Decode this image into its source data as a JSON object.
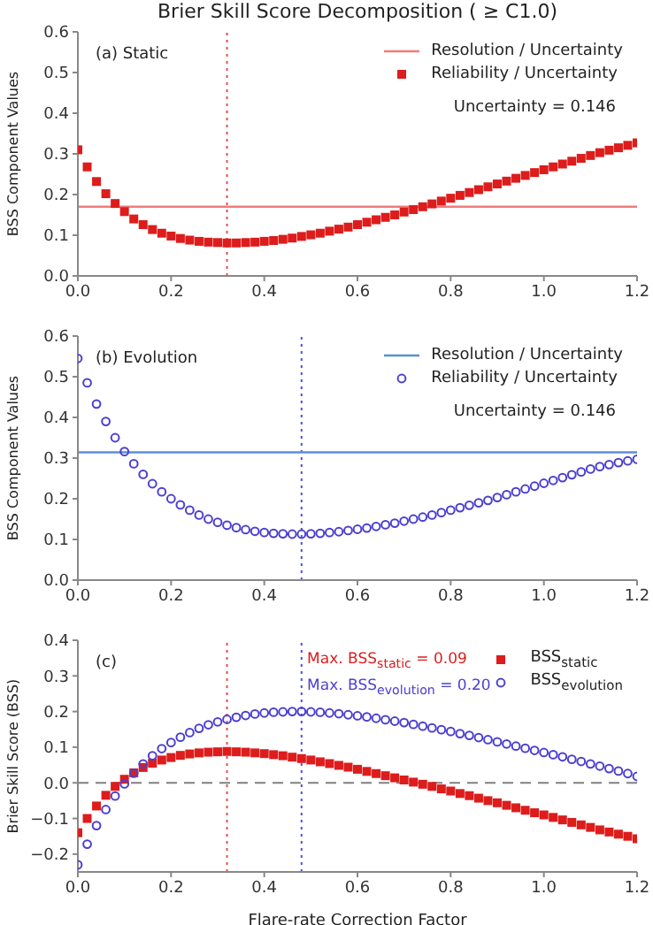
{
  "chart_data": [
    {
      "type": "scatter",
      "title": "Brier Skill Score Decomposition ( ≥ C1.0)",
      "ylabel": "BSS Component Values",
      "legend": "top right",
      "annotations": [
        "(a) Static",
        "Uncertainty = 0.146"
      ],
      "xlim": [
        0,
        1.2
      ],
      "xticks": [
        {
          "value": 0,
          "label": "0.0"
        },
        {
          "value": 0.2,
          "label": "0.2"
        },
        {
          "value": 0.4,
          "label": "0.4"
        },
        {
          "value": 0.6,
          "label": "0.6"
        },
        {
          "value": 0.8,
          "label": "0.8"
        },
        {
          "value": 1,
          "label": "1.0"
        },
        {
          "value": 1.2,
          "label": "1.2"
        }
      ],
      "ylim": [
        0,
        0.6
      ],
      "yticks": [
        {
          "value": 0,
          "label": "0.0"
        },
        {
          "value": 0.1,
          "label": "0.1"
        },
        {
          "value": 0.2,
          "label": "0.2"
        },
        {
          "value": 0.3,
          "label": "0.3"
        },
        {
          "value": 0.4,
          "label": "0.4"
        },
        {
          "value": 0.5,
          "label": "0.5"
        },
        {
          "value": 0.6,
          "label": "0.6"
        }
      ],
      "x": [
        0,
        0.02,
        0.04,
        0.06,
        0.08,
        0.1,
        0.12,
        0.14,
        0.16,
        0.18,
        0.2,
        0.22,
        0.24,
        0.26,
        0.28,
        0.3,
        0.32,
        0.34,
        0.36,
        0.38,
        0.4,
        0.42,
        0.44,
        0.46,
        0.48,
        0.5,
        0.52,
        0.54,
        0.56,
        0.58,
        0.6,
        0.62,
        0.64,
        0.66,
        0.68,
        0.7,
        0.72,
        0.74,
        0.76,
        0.78,
        0.8,
        0.82,
        0.84,
        0.86,
        0.88,
        0.9,
        0.92,
        0.94,
        0.96,
        0.98,
        1,
        1.02,
        1.04,
        1.06,
        1.08,
        1.1,
        1.12,
        1.14,
        1.16,
        1.18,
        1.2
      ],
      "ref_lines": [
        {
          "axis": "x",
          "value": 0.32,
          "color": "#e05050",
          "line_style": "dotted"
        }
      ],
      "series": [
        {
          "name": "Resolution / Uncertainty",
          "type": "line",
          "color": "#f07c7c",
          "values": [
            0.17,
            0.17,
            0.17,
            0.17,
            0.17,
            0.17,
            0.17,
            0.17,
            0.17,
            0.17,
            0.17,
            0.17,
            0.17,
            0.17,
            0.17,
            0.17,
            0.17,
            0.17,
            0.17,
            0.17,
            0.17,
            0.17,
            0.17,
            0.17,
            0.17,
            0.17,
            0.17,
            0.17,
            0.17,
            0.17,
            0.17,
            0.17,
            0.17,
            0.17,
            0.17,
            0.17,
            0.17,
            0.17,
            0.17,
            0.17,
            0.17,
            0.17,
            0.17,
            0.17,
            0.17,
            0.17,
            0.17,
            0.17,
            0.17,
            0.17,
            0.17,
            0.17,
            0.17,
            0.17,
            0.17,
            0.17,
            0.17,
            0.17,
            0.17,
            0.17,
            0.17
          ]
        },
        {
          "name": "Reliability / Uncertainty",
          "color": "#dd1c1c",
          "marker": "square",
          "values": [
            0.31,
            0.268,
            0.232,
            0.202,
            0.178,
            0.158,
            0.14,
            0.126,
            0.114,
            0.105,
            0.098,
            0.092,
            0.088,
            0.085,
            0.083,
            0.082,
            0.081,
            0.081,
            0.082,
            0.083,
            0.085,
            0.087,
            0.09,
            0.093,
            0.097,
            0.101,
            0.105,
            0.11,
            0.115,
            0.12,
            0.126,
            0.132,
            0.138,
            0.144,
            0.15,
            0.157,
            0.163,
            0.17,
            0.177,
            0.184,
            0.191,
            0.198,
            0.205,
            0.212,
            0.219,
            0.226,
            0.233,
            0.24,
            0.247,
            0.254,
            0.261,
            0.268,
            0.275,
            0.282,
            0.289,
            0.296,
            0.303,
            0.309,
            0.315,
            0.321,
            0.327
          ]
        }
      ]
    },
    {
      "type": "scatter",
      "ylabel": "BSS Component Values",
      "legend": "top right",
      "annotations": [
        "(b) Evolution",
        "Uncertainty = 0.146"
      ],
      "xlim": [
        0,
        1.2
      ],
      "xticks": [
        {
          "value": 0,
          "label": "0.0"
        },
        {
          "value": 0.2,
          "label": "0.2"
        },
        {
          "value": 0.4,
          "label": "0.4"
        },
        {
          "value": 0.6,
          "label": "0.6"
        },
        {
          "value": 0.8,
          "label": "0.8"
        },
        {
          "value": 1,
          "label": "1.0"
        },
        {
          "value": 1.2,
          "label": "1.2"
        }
      ],
      "ylim": [
        0,
        0.6
      ],
      "yticks": [
        {
          "value": 0,
          "label": "0.0"
        },
        {
          "value": 0.1,
          "label": "0.1"
        },
        {
          "value": 0.2,
          "label": "0.2"
        },
        {
          "value": 0.3,
          "label": "0.3"
        },
        {
          "value": 0.4,
          "label": "0.4"
        },
        {
          "value": 0.5,
          "label": "0.5"
        },
        {
          "value": 0.6,
          "label": "0.6"
        }
      ],
      "x": [
        0,
        0.02,
        0.04,
        0.06,
        0.08,
        0.1,
        0.12,
        0.14,
        0.16,
        0.18,
        0.2,
        0.22,
        0.24,
        0.26,
        0.28,
        0.3,
        0.32,
        0.34,
        0.36,
        0.38,
        0.4,
        0.42,
        0.44,
        0.46,
        0.48,
        0.5,
        0.52,
        0.54,
        0.56,
        0.58,
        0.6,
        0.62,
        0.64,
        0.66,
        0.68,
        0.7,
        0.72,
        0.74,
        0.76,
        0.78,
        0.8,
        0.82,
        0.84,
        0.86,
        0.88,
        0.9,
        0.92,
        0.94,
        0.96,
        0.98,
        1,
        1.02,
        1.04,
        1.06,
        1.08,
        1.1,
        1.12,
        1.14,
        1.16,
        1.18,
        1.2
      ],
      "ref_lines": [
        {
          "axis": "x",
          "value": 0.48,
          "color": "#5050e0",
          "line_style": "dotted"
        }
      ],
      "series": [
        {
          "name": "Resolution / Uncertainty",
          "type": "line",
          "color": "#5b8fd6",
          "values": [
            0.314,
            0.314,
            0.314,
            0.314,
            0.314,
            0.314,
            0.314,
            0.314,
            0.314,
            0.314,
            0.314,
            0.314,
            0.314,
            0.314,
            0.314,
            0.314,
            0.314,
            0.314,
            0.314,
            0.314,
            0.314,
            0.314,
            0.314,
            0.314,
            0.314,
            0.314,
            0.314,
            0.314,
            0.314,
            0.314,
            0.314,
            0.314,
            0.314,
            0.314,
            0.314,
            0.314,
            0.314,
            0.314,
            0.314,
            0.314,
            0.314,
            0.314,
            0.314,
            0.314,
            0.314,
            0.314,
            0.314,
            0.314,
            0.314,
            0.314,
            0.314,
            0.314,
            0.314,
            0.314,
            0.314,
            0.314,
            0.314,
            0.314,
            0.314,
            0.314,
            0.314
          ]
        },
        {
          "name": "Reliability / Uncertainty",
          "color": "#4b3fd0",
          "marker": "circle",
          "values": [
            0.545,
            0.485,
            0.433,
            0.39,
            0.35,
            0.316,
            0.286,
            0.26,
            0.237,
            0.217,
            0.2,
            0.185,
            0.172,
            0.16,
            0.15,
            0.142,
            0.135,
            0.129,
            0.124,
            0.12,
            0.117,
            0.115,
            0.114,
            0.113,
            0.113,
            0.114,
            0.115,
            0.117,
            0.119,
            0.122,
            0.125,
            0.128,
            0.132,
            0.136,
            0.14,
            0.145,
            0.15,
            0.155,
            0.16,
            0.166,
            0.172,
            0.178,
            0.184,
            0.19,
            0.196,
            0.203,
            0.21,
            0.217,
            0.224,
            0.231,
            0.238,
            0.245,
            0.252,
            0.259,
            0.266,
            0.273,
            0.279,
            0.284,
            0.289,
            0.293,
            0.297
          ]
        }
      ]
    },
    {
      "type": "scatter",
      "xlabel": "Flare-rate Correction Factor",
      "ylabel": "Brier Skill Score (BSS)",
      "legend": "top right",
      "annotations": [
        "(c)",
        "Max. BSS$_{static}$ = 0.09",
        "Max. BSS$_{evolution}$ = 0.20"
      ],
      "xlim": [
        0,
        1.2
      ],
      "xticks": [
        {
          "value": 0,
          "label": "0.0"
        },
        {
          "value": 0.2,
          "label": "0.2"
        },
        {
          "value": 0.4,
          "label": "0.4"
        },
        {
          "value": 0.6,
          "label": "0.6"
        },
        {
          "value": 0.8,
          "label": "0.8"
        },
        {
          "value": 1,
          "label": "1.0"
        },
        {
          "value": 1.2,
          "label": "1.2"
        }
      ],
      "ylim": [
        -0.25,
        0.4
      ],
      "yticks": [
        {
          "value": -0.2,
          "label": "−0.2"
        },
        {
          "value": -0.1,
          "label": "−0.1"
        },
        {
          "value": 0,
          "label": "0.0"
        },
        {
          "value": 0.1,
          "label": "0.1"
        },
        {
          "value": 0.2,
          "label": "0.2"
        },
        {
          "value": 0.3,
          "label": "0.3"
        },
        {
          "value": 0.4,
          "label": "0.4"
        }
      ],
      "x": [
        0,
        0.02,
        0.04,
        0.06,
        0.08,
        0.1,
        0.12,
        0.14,
        0.16,
        0.18,
        0.2,
        0.22,
        0.24,
        0.26,
        0.28,
        0.3,
        0.32,
        0.34,
        0.36,
        0.38,
        0.4,
        0.42,
        0.44,
        0.46,
        0.48,
        0.5,
        0.52,
        0.54,
        0.56,
        0.58,
        0.6,
        0.62,
        0.64,
        0.66,
        0.68,
        0.7,
        0.72,
        0.74,
        0.76,
        0.78,
        0.8,
        0.82,
        0.84,
        0.86,
        0.88,
        0.9,
        0.92,
        0.94,
        0.96,
        0.98,
        1,
        1.02,
        1.04,
        1.06,
        1.08,
        1.1,
        1.12,
        1.14,
        1.16,
        1.18,
        1.2
      ],
      "ref_lines": [
        {
          "axis": "y",
          "value": 0,
          "color": "#808080",
          "line_style": "dashed"
        },
        {
          "axis": "x",
          "value": 0.32,
          "color": "#e05050",
          "line_style": "dotted"
        },
        {
          "axis": "x",
          "value": 0.48,
          "color": "#5050e0",
          "line_style": "dotted"
        }
      ],
      "series": [
        {
          "name": "BSS$_{static}$",
          "color": "#dd1c1c",
          "marker": "square",
          "values": [
            -0.14,
            -0.1,
            -0.065,
            -0.035,
            -0.01,
            0.01,
            0.028,
            0.043,
            0.055,
            0.064,
            0.071,
            0.077,
            0.081,
            0.084,
            0.086,
            0.087,
            0.088,
            0.087,
            0.086,
            0.084,
            0.082,
            0.079,
            0.076,
            0.072,
            0.068,
            0.064,
            0.059,
            0.054,
            0.049,
            0.044,
            0.038,
            0.032,
            0.026,
            0.02,
            0.014,
            0.008,
            0.002,
            -0.004,
            -0.01,
            -0.017,
            -0.023,
            -0.03,
            -0.036,
            -0.043,
            -0.05,
            -0.056,
            -0.063,
            -0.07,
            -0.077,
            -0.084,
            -0.09,
            -0.097,
            -0.104,
            -0.111,
            -0.118,
            -0.125,
            -0.132,
            -0.138,
            -0.144,
            -0.15,
            -0.157
          ]
        },
        {
          "name": "BSS$_{evolution}$",
          "color": "#4b3fd0",
          "marker": "circle",
          "values": [
            -0.23,
            -0.172,
            -0.12,
            -0.075,
            -0.037,
            -0.003,
            0.027,
            0.053,
            0.076,
            0.096,
            0.113,
            0.128,
            0.141,
            0.153,
            0.163,
            0.171,
            0.178,
            0.184,
            0.189,
            0.193,
            0.196,
            0.198,
            0.199,
            0.2,
            0.2,
            0.199,
            0.198,
            0.196,
            0.194,
            0.191,
            0.188,
            0.185,
            0.181,
            0.177,
            0.173,
            0.169,
            0.164,
            0.159,
            0.154,
            0.149,
            0.144,
            0.138,
            0.133,
            0.127,
            0.121,
            0.115,
            0.109,
            0.103,
            0.097,
            0.091,
            0.085,
            0.079,
            0.073,
            0.066,
            0.06,
            0.053,
            0.047,
            0.04,
            0.033,
            0.026,
            0.018
          ]
        }
      ]
    }
  ]
}
